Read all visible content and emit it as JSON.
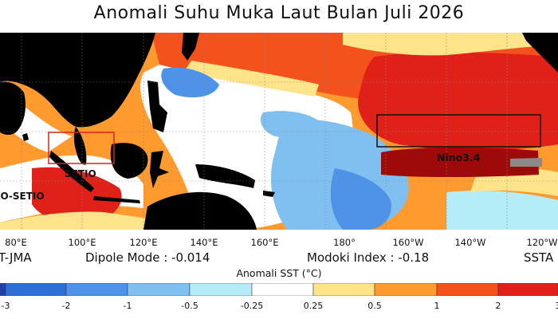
{
  "title": "Anomali Suhu Muka Laut Bulan Juli 2026",
  "x_ticks": [
    "80°E",
    "100°E",
    "120°E",
    "140°E",
    "160°E",
    "180°",
    "160°W",
    "140°W",
    "120°W"
  ],
  "info": {
    "source_fragment": "T-JMA",
    "dipole_mode": "Dipole Mode : -0.014",
    "modoki_index": "Modoki Index : -0.18",
    "ssta_fragment": "SSTA"
  },
  "regions": {
    "nino34": "Nino3.4",
    "setio": "SETIO",
    "io_setio_fragment": "IO-SETIO"
  },
  "colorbar": {
    "label": "Anomali SST (°C)",
    "ticks": [
      "-3",
      "-2",
      "-1",
      "-0.5",
      "-0.25",
      "0.25",
      "0.5",
      "1",
      "2",
      "3"
    ],
    "colors": [
      "#1f3fb4",
      "#2e6fd6",
      "#4f93e8",
      "#7fc0f0",
      "#b4ecf7",
      "#ffffff",
      "#fde38a",
      "#fe9a2e",
      "#f4521c",
      "#e0211a",
      "#9e0a0a"
    ]
  },
  "map_colors": {
    "land": "#000000",
    "neutral": "#ffffff",
    "warm_weak": "#fde38a",
    "warm": "#fe9a2e",
    "warm_strong": "#f4521c",
    "hot": "#e0211a",
    "very_hot": "#9e0a0a",
    "cool_weak": "#b4ecf7",
    "cool": "#7fc0f0",
    "cool_strong": "#4f93e8",
    "missing": "#8a8a8a",
    "setio_box": "#d8261f",
    "nino_box": "#111111"
  }
}
